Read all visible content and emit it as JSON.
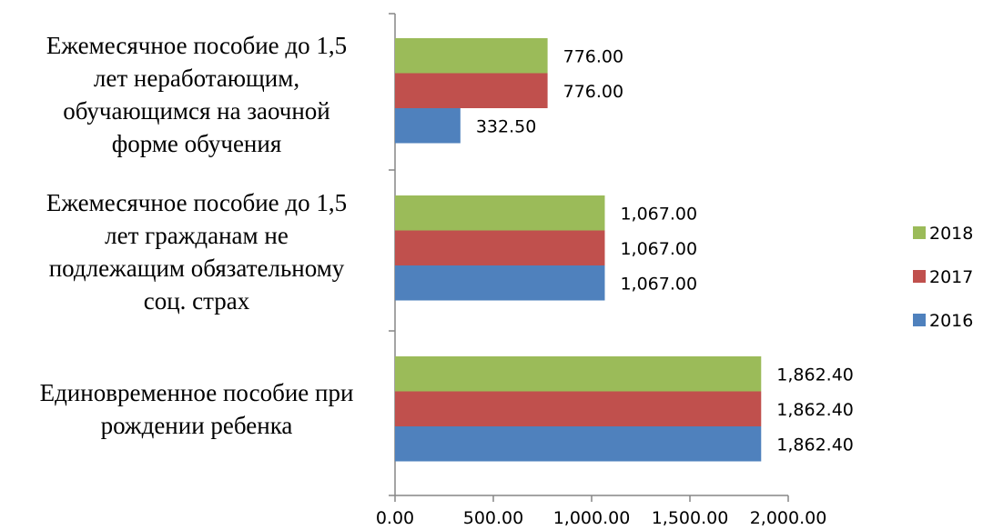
{
  "chart_data": {
    "type": "bar",
    "orientation": "horizontal",
    "categories": [
      "Единовременное пособие при рождении ребенка",
      "Ежемесячное пособие до 1,5 лет гражданам не подлежащим обязательному соц. страх",
      "Ежемесячное пособие до 1,5 лет неработающим, обучающимся на заочной форме обучения"
    ],
    "category_label_lines": [
      [
        "Единовременное пособие при",
        "рождении ребенка"
      ],
      [
        "Ежемесячное пособие до 1,5",
        "лет гражданам не",
        "подлежащим обязательному",
        "соц. страх"
      ],
      [
        "Ежемесячное пособие до 1,5",
        "лет неработающим,",
        "обучающимся на заочной",
        "форме обучения"
      ]
    ],
    "series": [
      {
        "name": "2016",
        "color": "#4f81bd",
        "values": [
          1862.4,
          1067.0,
          332.5
        ],
        "labels": [
          "1,862.40",
          "1,067.00",
          "332.50"
        ]
      },
      {
        "name": "2017",
        "color": "#c0504d",
        "values": [
          1862.4,
          1067.0,
          776.0
        ],
        "labels": [
          "1,862.40",
          "1,067.00",
          "776.00"
        ]
      },
      {
        "name": "2018",
        "color": "#9bbb59",
        "values": [
          1862.4,
          1067.0,
          776.0
        ],
        "labels": [
          "1,862.40",
          "1,067.00",
          "776.00"
        ]
      }
    ],
    "xlim": [
      0,
      2000
    ],
    "x_ticks": [
      0,
      500,
      1000,
      1500,
      2000
    ],
    "x_tick_labels": [
      "0.00",
      "500.00",
      "1,000.00",
      "1,500.00",
      "2,000.00"
    ],
    "grid": false,
    "legend_position": "right",
    "legend_order": [
      "2018",
      "2017",
      "2016"
    ],
    "title": "",
    "xlabel": "",
    "ylabel": ""
  }
}
